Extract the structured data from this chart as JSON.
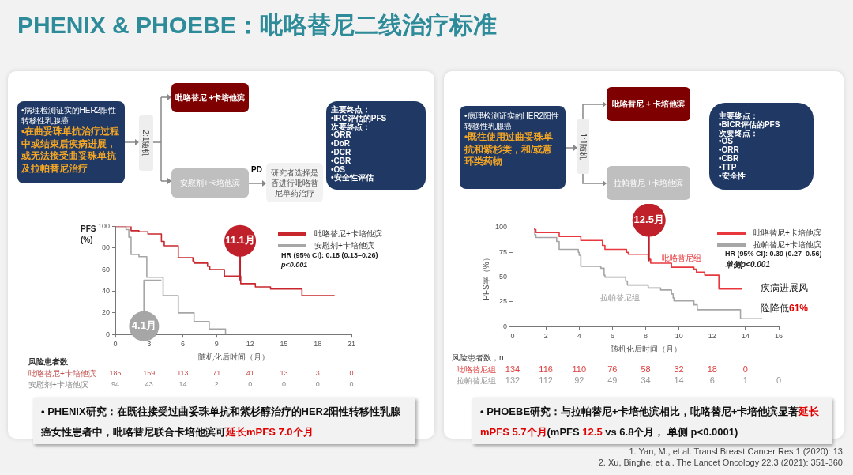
{
  "chart_data": [
    {
      "type": "step",
      "title": "PHENIX & PHOEBE：吡咯替尼二线治疗标准",
      "xlabel": "随机化后时间（月）",
      "ylabel": "PFS\n(%)",
      "xlim": [
        0,
        21
      ],
      "xticks": [
        0,
        3,
        6,
        9,
        12,
        15,
        18,
        21
      ],
      "ylim": [
        0,
        100
      ],
      "yticks": [
        0,
        20,
        40,
        60,
        80,
        100
      ],
      "legend": "top right",
      "series": [
        {
          "name": "吡咯替尼+卡培他滨",
          "color": "#c8282d",
          "x": [
            0,
            1.4,
            2.1,
            2.9,
            4.1,
            4.35,
            5.6,
            6.9,
            7.0,
            8.2,
            8.4,
            9.7,
            11.15,
            12.45,
            13.8,
            16.6,
            19.5
          ],
          "values": [
            100,
            96,
            95,
            93,
            86,
            82,
            71,
            68,
            66,
            63,
            60,
            54,
            47,
            44,
            42,
            36,
            36
          ]
        },
        {
          "name": "安慰剂+卡培他滨",
          "color": "#a6a6a6",
          "x": [
            0,
            0.95,
            1.2,
            1.4,
            2.1,
            2.8,
            4.25,
            5.6,
            7.0,
            8.35,
            9.8
          ],
          "values": [
            100,
            97,
            90,
            74,
            72,
            53,
            36,
            20,
            12,
            5,
            0
          ]
        }
      ],
      "annotations": [
        "•病理检测证实的HER2阳性转移性乳腺癌",
        "•在曲妥珠单抗治疗过程中或结束后疾病进展，或无法接受曲妥珠单抗及拉帕替尼治疗",
        "2:1随机",
        "吡咯替尼 +卡培他滨",
        "安慰剂+卡培他滨",
        "PD",
        "研究者选择是否进行吡咯替尼单药治疗",
        "主要终点：\n•IRC评估的PFS\n次要终点：\n•ORR\n•DoR\n•DCR\n•CBR\n•OS\n•安全性评估",
        {
          "text": "11.1月",
          "x": 11.1,
          "y": 50
        },
        {
          "text": "4.1月",
          "x": 4.1,
          "y": 50
        },
        "HR (95% CI): 0.18 (0.13–0.26)",
        "p<0.001",
        "风险患者数",
        "吡咯替尼+卡培他滨",
        "185 159 113 71 41 13 3 0",
        "安慰剂+卡培他滨",
        "94 43 14 2 0 0 0 0",
        "• PHENIX研究：在既往接受过曲妥珠单抗和紫杉醇治疗的HER2阳性转移性乳腺癌女性患者中，吡咯替尼联合卡培他滨可",
        "延长mPFS 7.0个月"
      ]
    },
    {
      "type": "step",
      "xlabel": "随机化后时间（月）",
      "ylabel": "PFS率（%）",
      "xlim": [
        0,
        16
      ],
      "xticks": [
        0,
        2,
        4,
        6,
        8,
        10,
        12,
        14,
        16
      ],
      "ylim": [
        0,
        100
      ],
      "yticks": [
        0,
        25,
        50,
        75,
        100
      ],
      "legend": "top right",
      "series": [
        {
          "name": "吡咯替尼+卡培他滨",
          "color": "#e8383d",
          "x": [
            0,
            1.33,
            1.4,
            2.8,
            4.1,
            5.4,
            5.55,
            6.85,
            6.95,
            8.15,
            8.3,
            9.55,
            10.9,
            11.05,
            11.55,
            12.4,
            13.8
          ],
          "values": [
            100,
            98,
            95,
            91,
            87,
            82,
            78,
            75,
            73,
            68,
            64,
            60,
            58,
            55,
            52,
            38,
            38
          ]
        },
        {
          "name": "拉帕替尼+卡培他滨",
          "color": "#a6a6a6",
          "x": [
            0,
            1.33,
            1.4,
            2.65,
            2.8,
            3.95,
            4.0,
            4.1,
            5.3,
            5.5,
            5.55,
            6.8,
            6.9,
            8.15,
            8.9,
            9.55,
            9.65,
            9.7,
            10.9,
            11.1,
            13.6,
            13.7,
            15.0
          ],
          "values": [
            100,
            93,
            90,
            86,
            78,
            75,
            72,
            61,
            59,
            52,
            50,
            46,
            42,
            39,
            37,
            33,
            29,
            26,
            22,
            17,
            17,
            8,
            8
          ]
        }
      ],
      "annotations": [
        "•病理检测证实的HER2阳性转移性乳腺癌",
        "•既往使用过曲妥珠单抗和紫杉类，和/或蒽环类药物",
        "1:1随机",
        "吡咯替尼 + 卡培他滨",
        "拉帕替尼 +卡培他滨",
        "主要终点：\n•BICR评估的PFS\n次要终点：\n•OS\n•ORR\n•CBR\n•TTP\n•安全性",
        {
          "text": "12.5月",
          "x": 8.2,
          "y": 66
        },
        "吡咯替尼组",
        "拉帕替尼组",
        "HR (95% CI): 0.39 (0.27–0.56)",
        "单侧p<0.001",
        "疾病进展风险降低",
        "61%",
        "风险患者数，n",
        "吡咯替尼组",
        "134 116 110 76 58 32 18 0",
        "拉帕替尼组",
        "132 112 92 49 34 14 6 1 0",
        "• PHOEBE研究：与拉帕替尼+卡培他滨相比，吡咯替尼+卡培他滨显著",
        "延长mPFS 5.7个月",
        "(mPFS ",
        "12.5",
        " vs 6.8个月， 单侧 p<0.0001)",
        "1. Yan, M., et al. Transl Breast Cancer Res 1 (2020): 13;",
        "2. Xu, Binghe, et al. The Lancet Oncology 22.3 (2021): 351-360."
      ]
    }
  ]
}
